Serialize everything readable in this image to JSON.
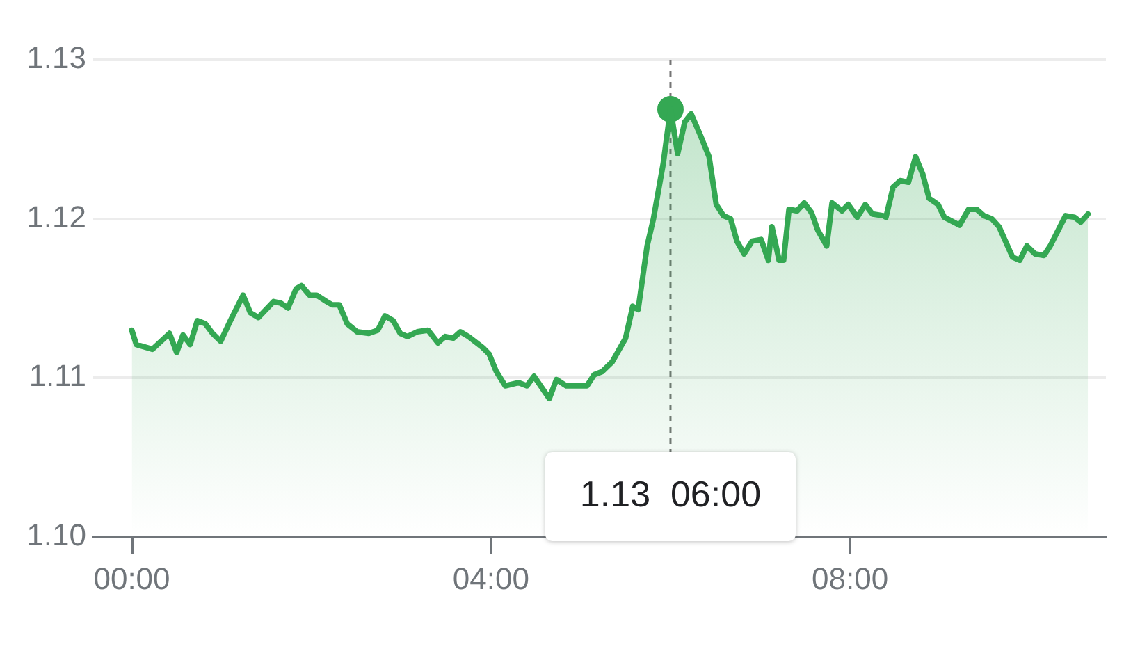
{
  "chart_data": {
    "type": "area",
    "xlim": [
      -0.43,
      10.85
    ],
    "xticks": [
      {
        "value": 0,
        "label": "00:00"
      },
      {
        "value": 4,
        "label": "04:00"
      },
      {
        "value": 8,
        "label": "08:00"
      }
    ],
    "ylim": [
      1.1,
      1.13
    ],
    "yticks": [
      {
        "value": 1.1,
        "label": "1.10"
      },
      1.11,
      1.12,
      1.13
    ],
    "grid": "y",
    "legend": false,
    "line_style": "solid",
    "x": [
      0,
      0.05,
      0.23,
      0.42,
      0.5,
      0.57,
      0.65,
      0.73,
      0.82,
      0.9,
      0.99,
      1.09,
      1.16,
      1.24,
      1.32,
      1.41,
      1.58,
      1.66,
      1.74,
      1.83,
      1.89,
      1.98,
      2.06,
      2.17,
      2.23,
      2.31,
      2.4,
      2.51,
      2.64,
      2.74,
      2.82,
      2.91,
      2.99,
      3.07,
      3.18,
      3.3,
      3.41,
      3.49,
      3.58,
      3.66,
      3.75,
      3.91,
      3.98,
      4.06,
      4.16,
      4.31,
      4.4,
      4.48,
      4.65,
      4.73,
      4.84,
      5.07,
      5.15,
      5.24,
      5.35,
      5.5,
      5.58,
      5.64,
      5.74,
      5.81,
      5.92,
      6,
      6.08,
      6.16,
      6.23,
      6.33,
      6.43,
      6.51,
      6.59,
      6.67,
      6.74,
      6.82,
      6.91,
      7.01,
      7.09,
      7.13,
      7.21,
      7.26,
      7.32,
      7.41,
      7.49,
      7.57,
      7.64,
      7.74,
      7.8,
      7.91,
      7.98,
      8.08,
      8.17,
      8.25,
      8.37,
      8.4,
      8.48,
      8.56,
      8.65,
      8.73,
      8.81,
      8.88,
      8.98,
      9.05,
      9.22,
      9.32,
      9.41,
      9.49,
      9.58,
      9.66,
      9.81,
      9.89,
      9.97,
      10.06,
      10.16,
      10.23,
      10.4,
      10.5,
      10.57,
      10.65
    ],
    "series": [
      {
        "color": "#34a853",
        "marker": "none",
        "values": [
          1.113,
          1.1121,
          1.1118,
          1.1128,
          1.1116,
          1.1127,
          1.1121,
          1.1136,
          1.1134,
          1.1128,
          1.1123,
          1.1135,
          1.1143,
          1.1152,
          1.1141,
          1.1138,
          1.1148,
          1.1147,
          1.1144,
          1.1156,
          1.1158,
          1.1152,
          1.1152,
          1.1148,
          1.1146,
          1.1146,
          1.1134,
          1.1129,
          1.1128,
          1.113,
          1.1139,
          1.1136,
          1.1128,
          1.1126,
          1.1129,
          1.113,
          1.1122,
          1.1126,
          1.1125,
          1.1129,
          1.1126,
          1.1119,
          1.1115,
          1.1104,
          1.1095,
          1.1097,
          1.1095,
          1.1101,
          1.1087,
          1.1099,
          1.1095,
          1.1095,
          1.1102,
          1.1104,
          1.111,
          1.1125,
          1.1145,
          1.1143,
          1.1183,
          1.12,
          1.1235,
          1.1269,
          1.1241,
          1.1261,
          1.1266,
          1.1253,
          1.1239,
          1.1209,
          1.1202,
          1.12,
          1.1186,
          1.1178,
          1.1186,
          1.1187,
          1.1174,
          1.1195,
          1.1174,
          1.1174,
          1.1206,
          1.1205,
          1.121,
          1.1204,
          1.1193,
          1.1183,
          1.121,
          1.1205,
          1.1209,
          1.1201,
          1.1209,
          1.1203,
          1.1202,
          1.1201,
          1.122,
          1.1224,
          1.1223,
          1.1239,
          1.1228,
          1.1213,
          1.1209,
          1.1201,
          1.1196,
          1.1206,
          1.1206,
          1.1202,
          1.12,
          1.1195,
          1.1176,
          1.1174,
          1.1183,
          1.1178,
          1.1177,
          1.1183,
          1.1202,
          1.1201,
          1.1198,
          1.1203
        ]
      },
      {
        "type": "scatter",
        "color": "#34a853",
        "marker": "circle",
        "x": [
          6
        ],
        "values": [
          1.1269
        ]
      }
    ],
    "ref_lines": [
      {
        "axis": "x",
        "value": 6,
        "color": "#757575",
        "line_style": "dashed"
      }
    ],
    "annotations": [
      "1.13  06:00"
    ]
  }
}
